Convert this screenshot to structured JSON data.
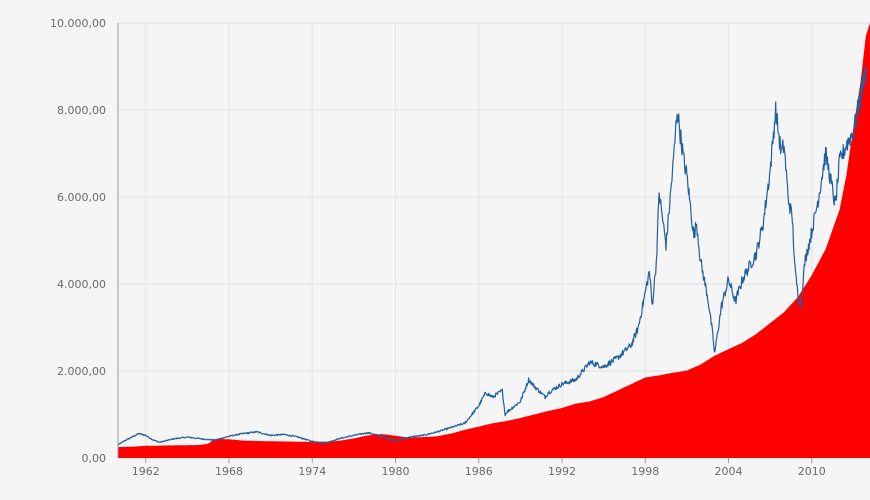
{
  "chart_data": {
    "type": "area",
    "title": "",
    "xlabel": "",
    "ylabel": "",
    "xlim": [
      1960,
      2014.2
    ],
    "ylim": [
      0,
      10000
    ],
    "grid": true,
    "x_ticks": [
      1962,
      1968,
      1974,
      1980,
      1986,
      1992,
      1998,
      2004,
      2010
    ],
    "x_tick_labels": [
      "1962",
      "1968",
      "1974",
      "1980",
      "1986",
      "1992",
      "1998",
      "2004",
      "2010"
    ],
    "y_ticks": [
      0,
      2000,
      4000,
      6000,
      8000,
      10000
    ],
    "y_tick_labels": [
      "0,00",
      "2.000,00",
      "4.000,00",
      "6.000,00",
      "8.000,00",
      "10.000,00"
    ],
    "series": [
      {
        "type": "area",
        "color": "#ff0000",
        "x": [
          1960.0,
          1961.0,
          1962.0,
          1964.0,
          1966.0,
          1966.5,
          1967.0,
          1968.0,
          1969.0,
          1970.0,
          1972.0,
          1974.0,
          1975.5,
          1976.0,
          1977.0,
          1978.0,
          1979.0,
          1980.0,
          1981.0,
          1982.0,
          1983.0,
          1984.0,
          1985.0,
          1986.0,
          1987.0,
          1988.0,
          1989.0,
          1990.0,
          1991.0,
          1992.0,
          1993.0,
          1994.0,
          1995.0,
          1996.0,
          1997.0,
          1998.0,
          1999.0,
          2000.0,
          2001.0,
          2002.0,
          2003.0,
          2004.0,
          2005.0,
          2006.0,
          2007.0,
          2008.0,
          2009.0,
          2010.0,
          2011.0,
          2012.0,
          2012.5,
          2013.0,
          2013.5,
          2013.9,
          2014.2
        ],
        "y": [
          250,
          260,
          280,
          290,
          300,
          330,
          440,
          430,
          400,
          390,
          380,
          370,
          380,
          400,
          450,
          520,
          550,
          510,
          470,
          480,
          500,
          560,
          650,
          720,
          800,
          850,
          920,
          1000,
          1080,
          1150,
          1250,
          1300,
          1400,
          1550,
          1700,
          1850,
          1900,
          1960,
          2010,
          2150,
          2350,
          2500,
          2650,
          2850,
          3100,
          3350,
          3700,
          4200,
          4800,
          5700,
          6500,
          7600,
          8600,
          9700,
          10500
        ]
      },
      {
        "type": "line",
        "color": "#1f5f9e",
        "x": [
          1960.0,
          1960.5,
          1961.0,
          1961.5,
          1962.0,
          1962.5,
          1963.0,
          1964.0,
          1965.0,
          1966.0,
          1967.0,
          1968.0,
          1969.0,
          1970.0,
          1971.0,
          1972.0,
          1973.0,
          1974.0,
          1975.0,
          1976.0,
          1977.0,
          1978.0,
          1979.0,
          1980.0,
          1981.0,
          1982.0,
          1983.0,
          1984.0,
          1985.0,
          1985.5,
          1986.0,
          1986.5,
          1987.0,
          1987.7,
          1987.9,
          1988.0,
          1989.0,
          1989.6,
          1990.0,
          1990.8,
          1991.0,
          1992.0,
          1993.0,
          1994.0,
          1995.0,
          1996.0,
          1997.0,
          1997.5,
          1998.0,
          1998.3,
          1998.5,
          1998.8,
          1999.0,
          1999.5,
          2000.0,
          2000.3,
          2000.8,
          2001.0,
          2001.5,
          2001.7,
          2002.0,
          2002.5,
          2002.8,
          2003.0,
          2003.5,
          2004.0,
          2004.5,
          2005.0,
          2006.0,
          2006.5,
          2007.0,
          2007.4,
          2007.8,
          2008.0,
          2008.3,
          2008.6,
          2008.8,
          2009.0,
          2009.2,
          2009.5,
          2010.0,
          2010.5,
          2011.0,
          2011.3,
          2011.7,
          2012.0,
          2012.5,
          2013.0,
          2013.5,
          2013.9
        ],
        "y": [
          300,
          400,
          480,
          560,
          520,
          420,
          360,
          440,
          480,
          440,
          410,
          500,
          560,
          600,
          520,
          540,
          480,
          380,
          350,
          450,
          520,
          580,
          500,
          400,
          480,
          520,
          600,
          700,
          800,
          1000,
          1200,
          1500,
          1400,
          1550,
          1000,
          1050,
          1300,
          1800,
          1650,
          1400,
          1500,
          1700,
          1800,
          2200,
          2100,
          2300,
          2600,
          3000,
          3800,
          4300,
          3500,
          4500,
          6100,
          4900,
          6700,
          8000,
          6800,
          6500,
          5100,
          5400,
          4500,
          3700,
          3000,
          2400,
          3500,
          4100,
          3600,
          4100,
          4700,
          5400,
          6600,
          8000,
          7000,
          7200,
          6000,
          5500,
          4300,
          3800,
          3500,
          4500,
          5200,
          6000,
          7000,
          6500,
          5800,
          6800,
          7200,
          7500,
          8300,
          9000
        ]
      }
    ]
  }
}
